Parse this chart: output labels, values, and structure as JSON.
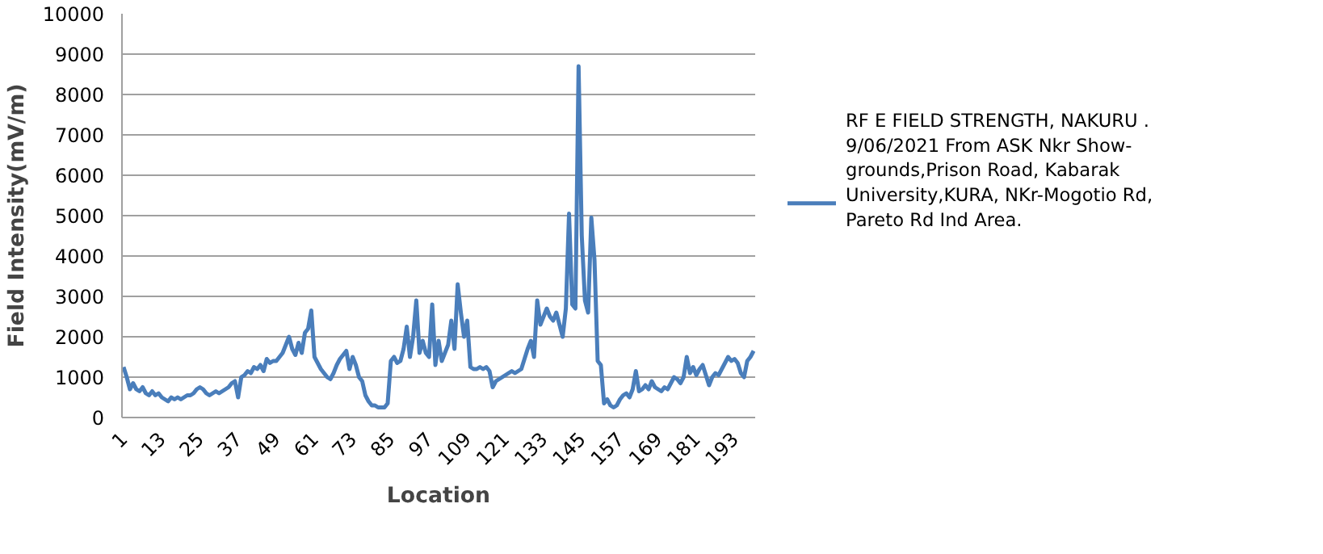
{
  "chart_data": {
    "type": "line",
    "xlabel": "Location",
    "ylabel": "Field Intensity(mV/m)",
    "ylim": [
      0,
      10000
    ],
    "yticks": [
      0,
      1000,
      2000,
      3000,
      4000,
      5000,
      6000,
      7000,
      8000,
      9000,
      10000
    ],
    "grid": "y",
    "legend": "right",
    "marker": "none",
    "line_style": "solid",
    "categories": [
      "1",
      null,
      null,
      null,
      null,
      null,
      null,
      null,
      null,
      null,
      null,
      null,
      "13",
      null,
      null,
      null,
      null,
      null,
      null,
      null,
      null,
      null,
      null,
      null,
      "25",
      null,
      null,
      null,
      null,
      null,
      null,
      null,
      null,
      null,
      null,
      null,
      "37",
      null,
      null,
      null,
      null,
      null,
      null,
      null,
      null,
      null,
      null,
      null,
      "49",
      null,
      null,
      null,
      null,
      null,
      null,
      null,
      null,
      null,
      null,
      null,
      "61",
      null,
      null,
      null,
      null,
      null,
      null,
      null,
      null,
      null,
      null,
      null,
      "73",
      null,
      null,
      null,
      null,
      null,
      null,
      null,
      null,
      null,
      null,
      null,
      "85",
      null,
      null,
      null,
      null,
      null,
      null,
      null,
      null,
      null,
      null,
      null,
      "97",
      null,
      null,
      null,
      null,
      null,
      null,
      null,
      null,
      null,
      null,
      null,
      "109",
      null,
      null,
      null,
      null,
      null,
      null,
      null,
      null,
      null,
      null,
      null,
      "121",
      null,
      null,
      null,
      null,
      null,
      null,
      null,
      null,
      null,
      null,
      null,
      "133",
      null,
      null,
      null,
      null,
      null,
      null,
      null,
      null,
      null,
      null,
      null,
      "145",
      null,
      null,
      null,
      null,
      null,
      null,
      null,
      null,
      null,
      null,
      null,
      "157",
      null,
      null,
      null,
      null,
      null,
      null,
      null,
      null,
      null,
      null,
      null,
      "169",
      null,
      null,
      null,
      null,
      null,
      null,
      null,
      null,
      null,
      null,
      null,
      "181",
      null,
      null,
      null,
      null,
      null,
      null,
      null,
      null,
      null,
      null,
      null,
      "193",
      null,
      null,
      null,
      null,
      null,
      null
    ],
    "series": [
      {
        "name": "RF  E FIELD STRENGTH, NAKURU . 9/06/2021 From ASK Nkr Show-grounds,Prison Road, Kabarak University,KURA, NKr-Mogotio Rd, Pareto Rd Ind Area.",
        "color": "#4a7ebb",
        "values": [
          1250,
          1000,
          700,
          850,
          700,
          650,
          750,
          600,
          550,
          650,
          550,
          600,
          500,
          450,
          400,
          500,
          450,
          500,
          450,
          500,
          550,
          550,
          600,
          700,
          750,
          700,
          600,
          550,
          600,
          650,
          600,
          650,
          700,
          750,
          850,
          900,
          500,
          1000,
          1050,
          1150,
          1100,
          1250,
          1200,
          1300,
          1150,
          1450,
          1350,
          1400,
          1400,
          1500,
          1600,
          1800,
          2000,
          1700,
          1550,
          1850,
          1600,
          2100,
          2200,
          2650,
          1500,
          1350,
          1200,
          1100,
          1000,
          950,
          1100,
          1300,
          1450,
          1550,
          1650,
          1200,
          1500,
          1300,
          1000,
          900,
          550,
          400,
          300,
          300,
          250,
          250,
          250,
          350,
          1400,
          1500,
          1350,
          1400,
          1700,
          2250,
          1500,
          2000,
          2900,
          1600,
          1900,
          1600,
          1500,
          2800,
          1300,
          1900,
          1400,
          1600,
          1800,
          2400,
          1700,
          3300,
          2600,
          2000,
          2400,
          1250,
          1200,
          1200,
          1250,
          1200,
          1250,
          1150,
          750,
          900,
          950,
          1000,
          1050,
          1100,
          1150,
          1100,
          1150,
          1200,
          1450,
          1700,
          1900,
          1500,
          2900,
          2300,
          2500,
          2700,
          2500,
          2400,
          2600,
          2300,
          2000,
          2700,
          5050,
          2800,
          2700,
          8700,
          4500,
          2900,
          2600,
          4950,
          3900,
          1400,
          1300,
          350,
          450,
          300,
          250,
          300,
          450,
          550,
          600,
          500,
          700,
          1150,
          650,
          700,
          800,
          700,
          900,
          750,
          700,
          650,
          750,
          700,
          850,
          1000,
          950,
          850,
          1000,
          1500,
          1100,
          1250,
          1050,
          1200,
          1300,
          1050,
          800,
          1000,
          1100,
          1050,
          1200,
          1350,
          1500,
          1400,
          1450,
          1350,
          1100,
          1000,
          1400,
          1500,
          1650
        ]
      }
    ]
  }
}
